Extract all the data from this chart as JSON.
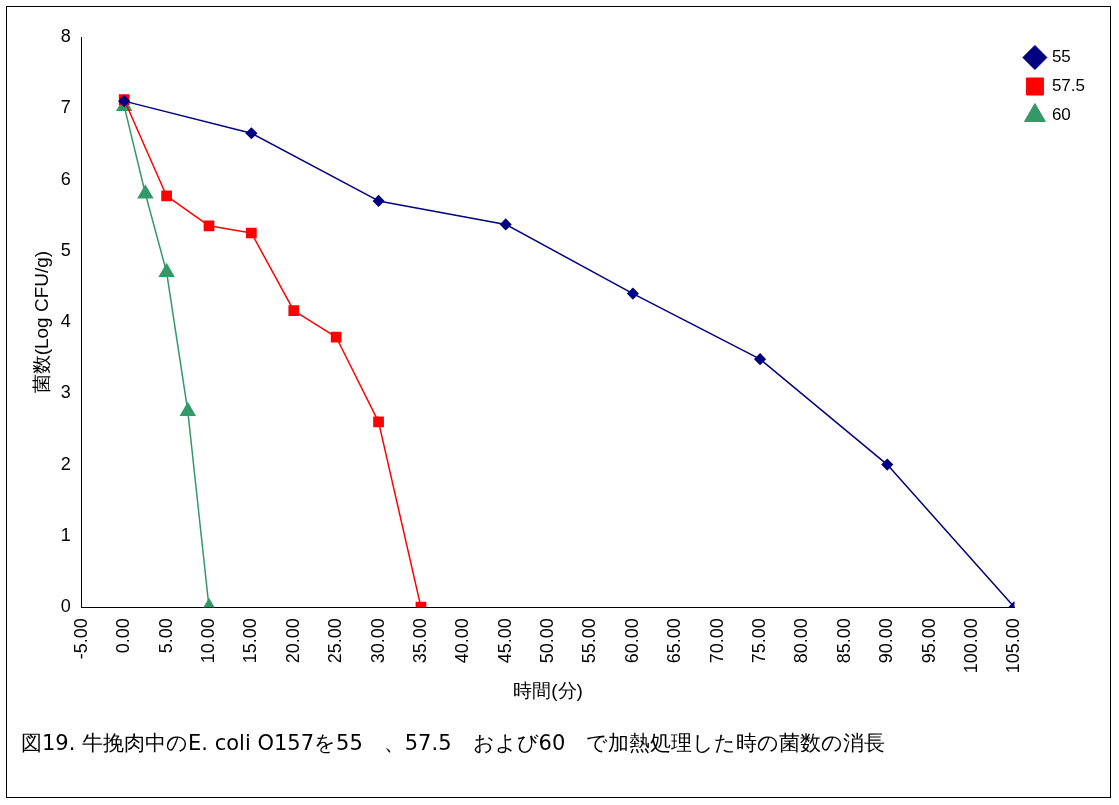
{
  "chart_data": {
    "type": "line",
    "xlabel": "時間(分)",
    "ylabel": "菌数(Log CFU/g)",
    "xlim": [
      -5,
      105
    ],
    "xticks": [
      {
        "value": -5,
        "label": "-5.00"
      },
      {
        "value": 0,
        "label": "0.00"
      },
      {
        "value": 5,
        "label": "5.00"
      },
      {
        "value": 10,
        "label": "10.00"
      },
      {
        "value": 15,
        "label": "15.00"
      },
      {
        "value": 20,
        "label": "20.00"
      },
      {
        "value": 25,
        "label": "25.00"
      },
      {
        "value": 30,
        "label": "30.00"
      },
      {
        "value": 35,
        "label": "35.00"
      },
      {
        "value": 40,
        "label": "40.00"
      },
      {
        "value": 45,
        "label": "45.00"
      },
      {
        "value": 50,
        "label": "50.00"
      },
      {
        "value": 55,
        "label": "55.00"
      },
      {
        "value": 60,
        "label": "60.00"
      },
      {
        "value": 65,
        "label": "65.00"
      },
      {
        "value": 70,
        "label": "70.00"
      },
      {
        "value": 75,
        "label": "75.00"
      },
      {
        "value": 80,
        "label": "80.00"
      },
      {
        "value": 85,
        "label": "85.00"
      },
      {
        "value": 90,
        "label": "90.00"
      },
      {
        "value": 95,
        "label": "95.00"
      },
      {
        "value": 100,
        "label": "100.00"
      },
      {
        "value": 105,
        "label": "105.00"
      }
    ],
    "ylim": [
      0,
      8
    ],
    "yticks": [
      0,
      1,
      2,
      3,
      4,
      5,
      6,
      7,
      8
    ],
    "grid": false,
    "legend": "right",
    "series": [
      {
        "name": "55",
        "color": "#000080",
        "marker": "diamond",
        "x": [
          0,
          15,
          30,
          45,
          60,
          75,
          90,
          105
        ],
        "values": [
          7.1,
          6.65,
          5.7,
          5.37,
          4.4,
          3.48,
          2.0,
          0
        ]
      },
      {
        "name": "57.5",
        "color": "#ff0000",
        "marker": "square",
        "x": [
          0,
          5,
          10,
          15,
          20,
          25,
          30,
          35
        ],
        "values": [
          7.12,
          5.77,
          5.35,
          5.25,
          4.16,
          3.79,
          2.6,
          0
        ]
      },
      {
        "name": "60",
        "color": "#339966",
        "marker": "triangle",
        "x": [
          0,
          2.5,
          5,
          7.5,
          10
        ],
        "values": [
          7.03,
          5.8,
          4.7,
          2.75,
          0
        ]
      }
    ],
    "annotations": [
      "図19. 牛挽肉中のE. coli O157を55　、57.5　および60　で加熱処理した時の菌数の消長"
    ]
  }
}
